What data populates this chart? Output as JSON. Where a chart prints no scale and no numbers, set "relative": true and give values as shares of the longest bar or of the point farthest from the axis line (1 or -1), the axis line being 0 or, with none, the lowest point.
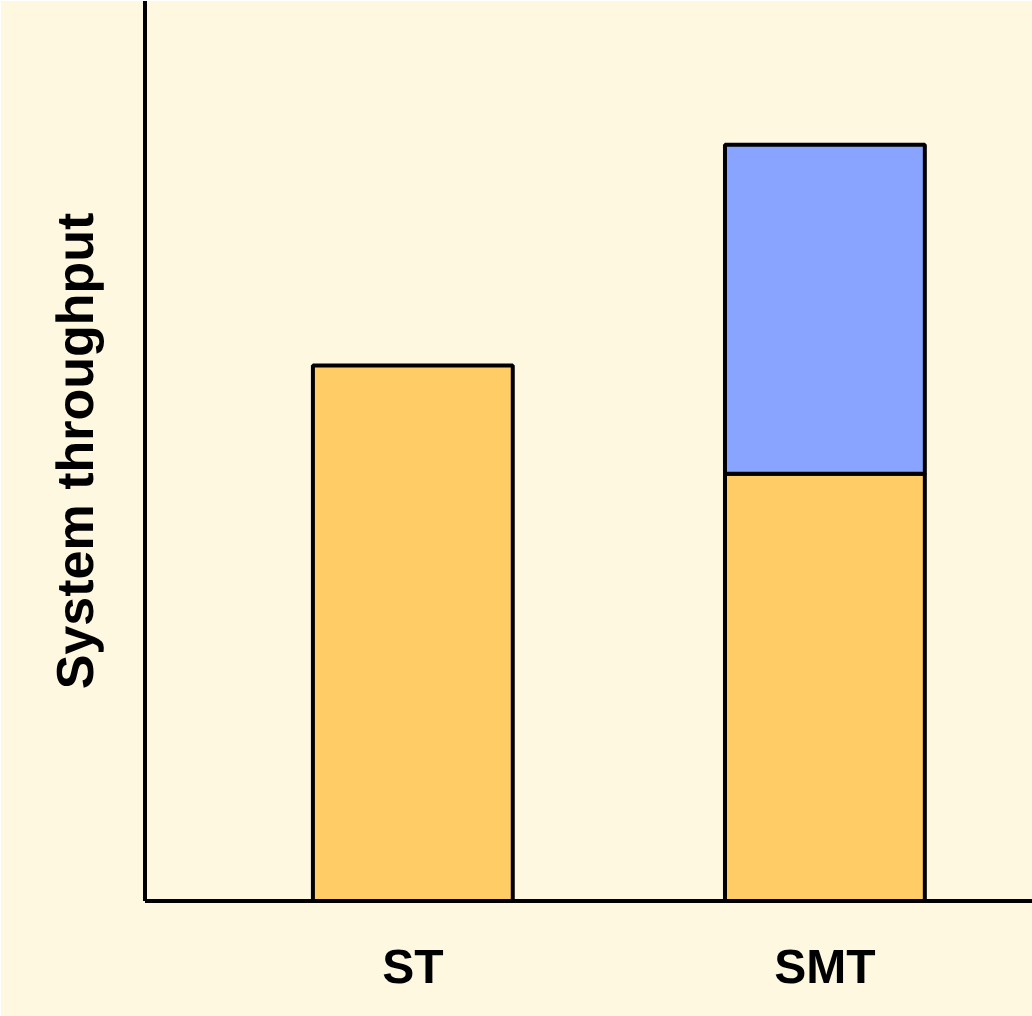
{
  "chart_data": {
    "type": "bar",
    "ylabel": "System throughput",
    "categories": [
      "ST",
      "SMT"
    ],
    "stacked": true,
    "relative": true,
    "grid": false,
    "series": [
      {
        "color": "#ffcc66",
        "values": [
          0.708,
          0.565
        ]
      },
      {
        "color": "#88a4ff",
        "values": [
          null,
          0.435
        ]
      }
    ]
  }
}
